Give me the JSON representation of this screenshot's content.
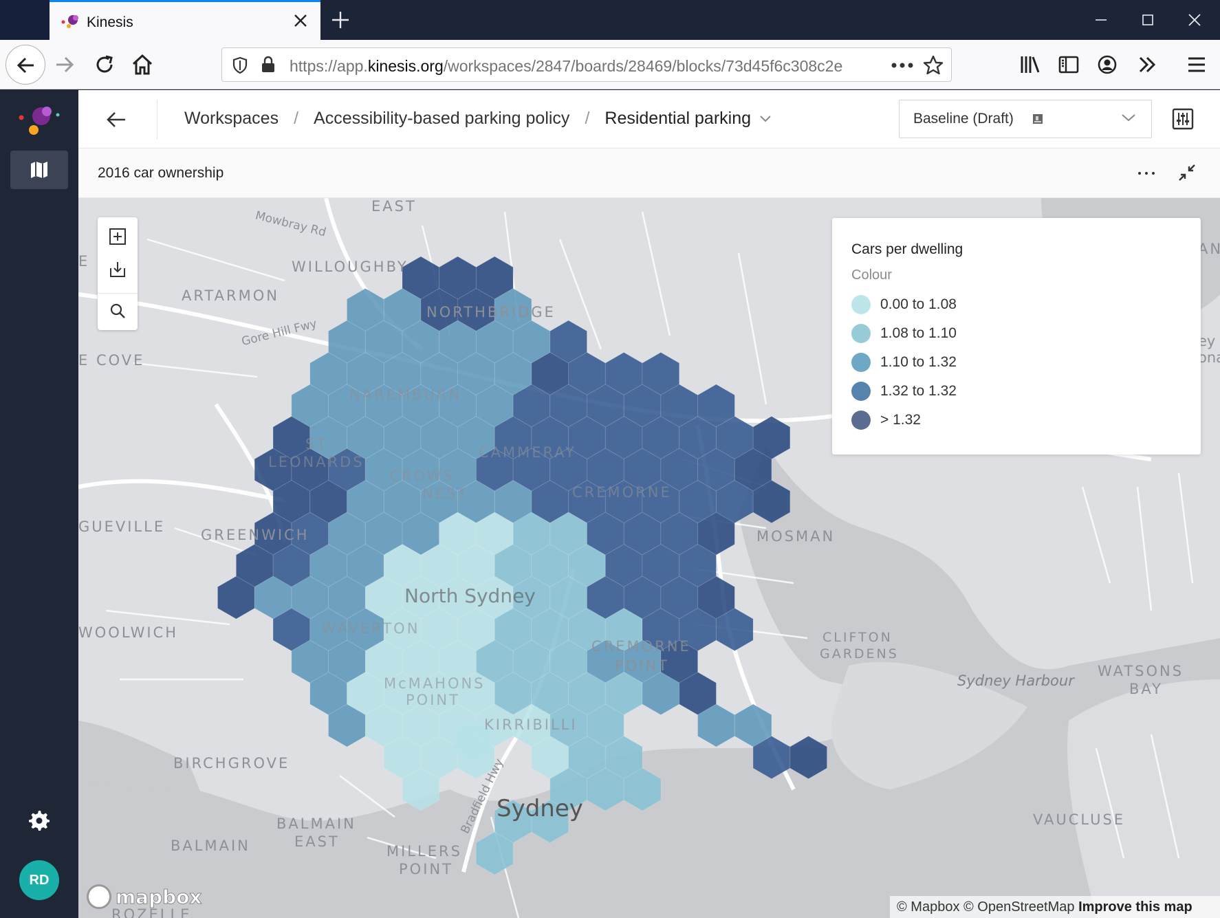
{
  "browser": {
    "tab_title": "Kinesis",
    "url_prefix": "https://app.",
    "url_host": "kinesis.org",
    "url_path": "/workspaces/2847/boards/28469/blocks/73d45f6c308c2e"
  },
  "header": {
    "breadcrumb": [
      "Workspaces",
      "Accessibility-based parking policy",
      "Residential parking"
    ],
    "separator": "/",
    "scenario": "Baseline (Draft)"
  },
  "user": {
    "initials": "RD"
  },
  "block": {
    "title": "2016 car ownership",
    "more_label": "···"
  },
  "legend": {
    "title": "Cars per dwelling",
    "subtitle": "Colour",
    "items": [
      {
        "label": "0.00 to 1.08",
        "color": "#bde6ea"
      },
      {
        "label": "1.08 to 1.10",
        "color": "#98cbd8"
      },
      {
        "label": "1.10 to 1.32",
        "color": "#6ea8c4"
      },
      {
        "label": "1.32 to 1.32",
        "color": "#5583ab"
      },
      {
        "label": "> 1.32",
        "color": "#5d6d92"
      }
    ]
  },
  "map": {
    "places": [
      "EAST",
      "Mowbray Rd",
      "WILLOUGHBY",
      "ARTARMON",
      "NORTHBRIDGE",
      "Gore Hill Fwy",
      "E COVE",
      "NAREMBURN",
      "ST",
      "LEONARDS",
      "CROWS",
      "NEST",
      "CAMMERAY",
      "CREMORNE",
      "GUEVILLE",
      "GREENWICH",
      "MOSMAN",
      "North Sydney",
      "WAVERTON",
      "WOOLWICH",
      "CREMORNE",
      "POINT",
      "CLIFTON",
      "GARDENS",
      "McMAHONS",
      "POINT",
      "Sydney Harbour",
      "WATSONS",
      "BAY",
      "KIRRIBILLI",
      "BIRCHGROVE",
      "Bradfield Hwy",
      "Sydney",
      "BALMAIN",
      "EAST",
      "BALMAIN",
      "MILLERS",
      "POINT",
      "VAUCLUSE",
      "ROZELLE",
      "ey H",
      "ona",
      "AN",
      "E"
    ],
    "mapbox_logo": "mapbox",
    "attribution": "© Mapbox © OpenStreetMap",
    "improve_link": "Improve this map"
  },
  "colors": {
    "hex_c1": "#b6e2e8",
    "hex_c2": "#86c2d4",
    "hex_c3": "#5e98bb",
    "hex_c4": "#33598f",
    "hex_c5": "#29497e"
  }
}
